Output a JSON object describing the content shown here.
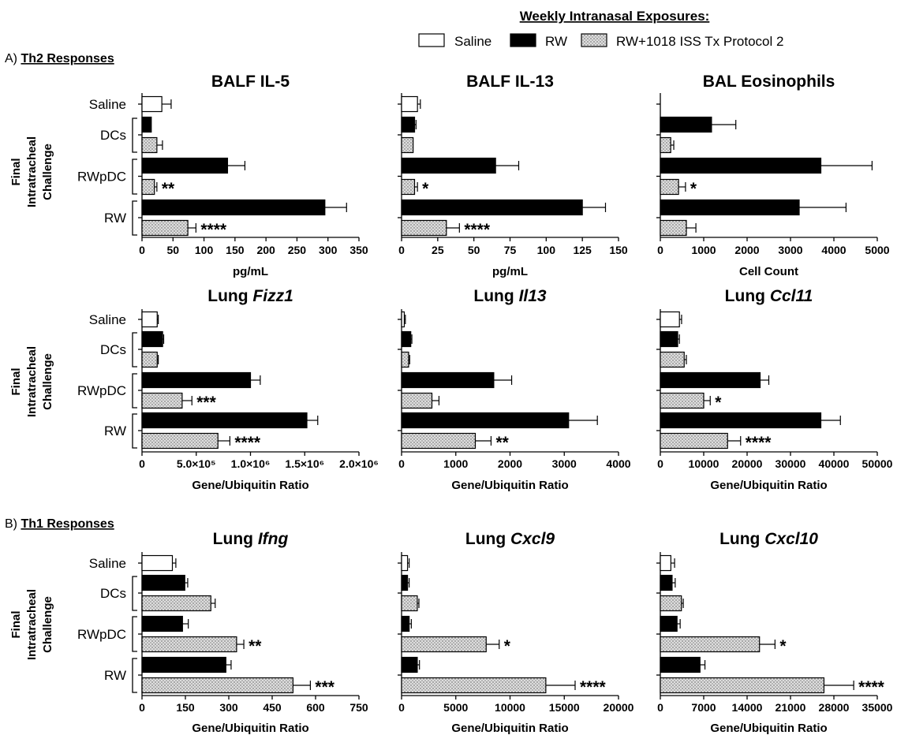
{
  "legend": {
    "title": "Weekly Intranasal Exposures:",
    "items": [
      {
        "label": "Saline",
        "key": "saline",
        "color": "#ffffff"
      },
      {
        "label": "RW",
        "key": "rw",
        "color": "#000000"
      },
      {
        "label": "RW+1018 ISS Tx Protocol 2",
        "key": "iss",
        "color": "#d4d4d4"
      }
    ]
  },
  "sections": [
    {
      "prefix": "A) ",
      "label": "Th2 Responses"
    },
    {
      "prefix": "B) ",
      "label": "Th1 Responses"
    }
  ],
  "ylabel": [
    "Final",
    "Intratracheal",
    "Challenge"
  ],
  "categories": [
    "Saline",
    "DCs",
    "RWpDC",
    "RW"
  ],
  "chart_data": [
    {
      "type": "bar",
      "title": "BALF IL-5",
      "title_plain": "BALF IL-5",
      "title_italic": "",
      "xlabel": "pg/mL",
      "xlim": [
        0,
        350
      ],
      "ticks": [
        "0",
        "50",
        "100",
        "150",
        "200",
        "250",
        "300",
        "350"
      ],
      "bars": [
        {
          "group": "Saline",
          "series": "Saline",
          "value": 32,
          "error": 15,
          "sig": ""
        },
        {
          "group": "DCs",
          "series": "RW",
          "value": 15,
          "error": 0,
          "sig": ""
        },
        {
          "group": "DCs",
          "series": "RW+1018 ISS Tx Protocol 2",
          "value": 24,
          "error": 9,
          "sig": ""
        },
        {
          "group": "RWpDC",
          "series": "RW",
          "value": 138,
          "error": 28,
          "sig": ""
        },
        {
          "group": "RWpDC",
          "series": "RW+1018 ISS Tx Protocol 2",
          "value": 20,
          "error": 4,
          "sig": "**"
        },
        {
          "group": "RW",
          "series": "RW",
          "value": 295,
          "error": 35,
          "sig": ""
        },
        {
          "group": "RW",
          "series": "RW+1018 ISS Tx Protocol 2",
          "value": 74,
          "error": 13,
          "sig": "****"
        }
      ]
    },
    {
      "type": "bar",
      "title": "BALF IL-13",
      "title_plain": "BALF IL-13",
      "title_italic": "",
      "xlabel": "pg/mL",
      "xlim": [
        0,
        150
      ],
      "ticks": [
        "0",
        "25",
        "50",
        "75",
        "100",
        "125",
        "150"
      ],
      "bars": [
        {
          "group": "Saline",
          "series": "Saline",
          "value": 11,
          "error": 2,
          "sig": ""
        },
        {
          "group": "DCs",
          "series": "RW",
          "value": 9,
          "error": 1,
          "sig": ""
        },
        {
          "group": "DCs",
          "series": "RW+1018 ISS Tx Protocol 2",
          "value": 8,
          "error": 0,
          "sig": ""
        },
        {
          "group": "RWpDC",
          "series": "RW",
          "value": 65,
          "error": 16,
          "sig": ""
        },
        {
          "group": "RWpDC",
          "series": "RW+1018 ISS Tx Protocol 2",
          "value": 9,
          "error": 2,
          "sig": "*"
        },
        {
          "group": "RW",
          "series": "RW",
          "value": 125,
          "error": 16,
          "sig": ""
        },
        {
          "group": "RW",
          "series": "RW+1018 ISS Tx Protocol 2",
          "value": 31,
          "error": 9,
          "sig": "****"
        }
      ]
    },
    {
      "type": "bar",
      "title": "BAL Eosinophils",
      "title_plain": "BAL Eosinophils",
      "title_italic": "",
      "xlabel": "Cell Count",
      "xlim": [
        0,
        5000
      ],
      "ticks": [
        "0",
        "1000",
        "2000",
        "3000",
        "4000",
        "5000"
      ],
      "bars": [
        {
          "group": "Saline",
          "series": "Saline",
          "value": 0,
          "error": 0,
          "sig": ""
        },
        {
          "group": "DCs",
          "series": "RW",
          "value": 1180,
          "error": 560,
          "sig": ""
        },
        {
          "group": "DCs",
          "series": "RW+1018 ISS Tx Protocol 2",
          "value": 240,
          "error": 70,
          "sig": ""
        },
        {
          "group": "RWpDC",
          "series": "RW",
          "value": 3700,
          "error": 1180,
          "sig": ""
        },
        {
          "group": "RWpDC",
          "series": "RW+1018 ISS Tx Protocol 2",
          "value": 420,
          "error": 160,
          "sig": "*"
        },
        {
          "group": "RW",
          "series": "RW",
          "value": 3200,
          "error": 1080,
          "sig": ""
        },
        {
          "group": "RW",
          "series": "RW+1018 ISS Tx Protocol 2",
          "value": 600,
          "error": 220,
          "sig": ""
        }
      ]
    },
    {
      "type": "bar",
      "title": "Lung Fizz1",
      "title_plain": "Lung ",
      "title_italic": "Fizz1",
      "xlabel": "Gene/Ubiquitin Ratio",
      "xlim": [
        0,
        2000000
      ],
      "ticks": [
        "0",
        "5.0×10⁵",
        "1.0×10⁶",
        "1.5×10⁶",
        "2.0×10⁶"
      ],
      "bars": [
        {
          "group": "Saline",
          "series": "Saline",
          "value": 140000,
          "error": 10000,
          "sig": ""
        },
        {
          "group": "DCs",
          "series": "RW",
          "value": 190000,
          "error": 10000,
          "sig": ""
        },
        {
          "group": "DCs",
          "series": "RW+1018 ISS Tx Protocol 2",
          "value": 140000,
          "error": 10000,
          "sig": ""
        },
        {
          "group": "RWpDC",
          "series": "RW",
          "value": 1000000,
          "error": 90000,
          "sig": ""
        },
        {
          "group": "RWpDC",
          "series": "RW+1018 ISS Tx Protocol 2",
          "value": 370000,
          "error": 90000,
          "sig": "***"
        },
        {
          "group": "RW",
          "series": "RW",
          "value": 1520000,
          "error": 100000,
          "sig": ""
        },
        {
          "group": "RW",
          "series": "RW+1018 ISS Tx Protocol 2",
          "value": 700000,
          "error": 110000,
          "sig": "****"
        }
      ]
    },
    {
      "type": "bar",
      "title": "Lung Il13",
      "title_plain": "Lung ",
      "title_italic": "Il13",
      "xlabel": "Gene/Ubiquitin Ratio",
      "xlim": [
        0,
        4000
      ],
      "ticks": [
        "0",
        "1000",
        "2000",
        "3000",
        "4000"
      ],
      "bars": [
        {
          "group": "Saline",
          "series": "Saline",
          "value": 50,
          "error": 20,
          "sig": ""
        },
        {
          "group": "DCs",
          "series": "RW",
          "value": 170,
          "error": 20,
          "sig": ""
        },
        {
          "group": "DCs",
          "series": "RW+1018 ISS Tx Protocol 2",
          "value": 130,
          "error": 20,
          "sig": ""
        },
        {
          "group": "RWpDC",
          "series": "RW",
          "value": 1700,
          "error": 330,
          "sig": ""
        },
        {
          "group": "RWpDC",
          "series": "RW+1018 ISS Tx Protocol 2",
          "value": 560,
          "error": 130,
          "sig": ""
        },
        {
          "group": "RW",
          "series": "RW",
          "value": 3080,
          "error": 530,
          "sig": ""
        },
        {
          "group": "RW",
          "series": "RW+1018 ISS Tx Protocol 2",
          "value": 1360,
          "error": 290,
          "sig": "**"
        }
      ]
    },
    {
      "type": "bar",
      "title": "Lung Ccl11",
      "title_plain": "Lung ",
      "title_italic": "Ccl11",
      "xlabel": "Gene/Ubiquitin Ratio",
      "xlim": [
        0,
        50000
      ],
      "ticks": [
        "0",
        "10000",
        "20000",
        "30000",
        "40000",
        "50000"
      ],
      "bars": [
        {
          "group": "Saline",
          "series": "Saline",
          "value": 4400,
          "error": 500,
          "sig": ""
        },
        {
          "group": "DCs",
          "series": "RW",
          "value": 4000,
          "error": 400,
          "sig": ""
        },
        {
          "group": "DCs",
          "series": "RW+1018 ISS Tx Protocol 2",
          "value": 5500,
          "error": 500,
          "sig": ""
        },
        {
          "group": "RWpDC",
          "series": "RW",
          "value": 23000,
          "error": 2000,
          "sig": ""
        },
        {
          "group": "RWpDC",
          "series": "RW+1018 ISS Tx Protocol 2",
          "value": 10000,
          "error": 1500,
          "sig": "*"
        },
        {
          "group": "RW",
          "series": "RW",
          "value": 37000,
          "error": 4500,
          "sig": ""
        },
        {
          "group": "RW",
          "series": "RW+1018 ISS Tx Protocol 2",
          "value": 15500,
          "error": 3000,
          "sig": "****"
        }
      ]
    },
    {
      "type": "bar",
      "title": "Lung Ifng",
      "title_plain": "Lung ",
      "title_italic": "Ifng",
      "xlabel": "Gene/Ubiquitin Ratio",
      "xlim": [
        0,
        750
      ],
      "ticks": [
        "0",
        "150",
        "300",
        "450",
        "600",
        "750"
      ],
      "bars": [
        {
          "group": "Saline",
          "series": "Saline",
          "value": 105,
          "error": 12,
          "sig": ""
        },
        {
          "group": "DCs",
          "series": "RW",
          "value": 148,
          "error": 10,
          "sig": ""
        },
        {
          "group": "DCs",
          "series": "RW+1018 ISS Tx Protocol 2",
          "value": 238,
          "error": 15,
          "sig": ""
        },
        {
          "group": "RWpDC",
          "series": "RW",
          "value": 140,
          "error": 20,
          "sig": ""
        },
        {
          "group": "RWpDC",
          "series": "RW+1018 ISS Tx Protocol 2",
          "value": 327,
          "error": 25,
          "sig": "**"
        },
        {
          "group": "RW",
          "series": "RW",
          "value": 290,
          "error": 18,
          "sig": ""
        },
        {
          "group": "RW",
          "series": "RW+1018 ISS Tx Protocol 2",
          "value": 522,
          "error": 60,
          "sig": "***"
        }
      ]
    },
    {
      "type": "bar",
      "title": "Lung Cxcl9",
      "title_plain": "Lung ",
      "title_italic": "Cxcl9",
      "xlabel": "Gene/Ubiquitin Ratio",
      "xlim": [
        0,
        20000
      ],
      "ticks": [
        "0",
        "5000",
        "10000",
        "15000",
        "20000"
      ],
      "bars": [
        {
          "group": "Saline",
          "series": "Saline",
          "value": 550,
          "error": 150,
          "sig": ""
        },
        {
          "group": "DCs",
          "series": "RW",
          "value": 550,
          "error": 150,
          "sig": ""
        },
        {
          "group": "DCs",
          "series": "RW+1018 ISS Tx Protocol 2",
          "value": 1450,
          "error": 150,
          "sig": ""
        },
        {
          "group": "RWpDC",
          "series": "RW",
          "value": 700,
          "error": 200,
          "sig": ""
        },
        {
          "group": "RWpDC",
          "series": "RW+1018 ISS Tx Protocol 2",
          "value": 7800,
          "error": 1200,
          "sig": "*"
        },
        {
          "group": "RW",
          "series": "RW",
          "value": 1450,
          "error": 200,
          "sig": ""
        },
        {
          "group": "RW",
          "series": "RW+1018 ISS Tx Protocol 2",
          "value": 13300,
          "error": 2700,
          "sig": "****"
        }
      ]
    },
    {
      "type": "bar",
      "title": "Lung Cxcl10",
      "title_plain": "Lung ",
      "title_italic": "Cxcl10",
      "xlabel": "Gene/Ubiquitin Ratio",
      "xlim": [
        0,
        35000
      ],
      "ticks": [
        "0",
        "7000",
        "14000",
        "21000",
        "28000",
        "35000"
      ],
      "bars": [
        {
          "group": "Saline",
          "series": "Saline",
          "value": 1700,
          "error": 600,
          "sig": ""
        },
        {
          "group": "DCs",
          "series": "RW",
          "value": 1900,
          "error": 500,
          "sig": ""
        },
        {
          "group": "DCs",
          "series": "RW+1018 ISS Tx Protocol 2",
          "value": 3400,
          "error": 300,
          "sig": ""
        },
        {
          "group": "RWpDC",
          "series": "RW",
          "value": 2700,
          "error": 500,
          "sig": ""
        },
        {
          "group": "RWpDC",
          "series": "RW+1018 ISS Tx Protocol 2",
          "value": 16000,
          "error": 2500,
          "sig": "*"
        },
        {
          "group": "RW",
          "series": "RW",
          "value": 6400,
          "error": 800,
          "sig": ""
        },
        {
          "group": "RW",
          "series": "RW+1018 ISS Tx Protocol 2",
          "value": 26400,
          "error": 4800,
          "sig": "****"
        }
      ]
    }
  ]
}
